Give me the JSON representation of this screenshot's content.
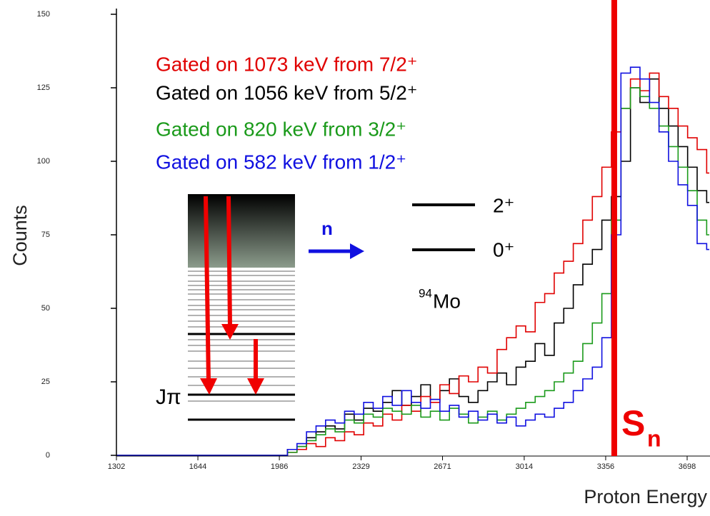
{
  "chart_data": {
    "type": "line",
    "drawstyle": "steps-post",
    "xlabel": "Proton Energy",
    "ylabel": "Counts",
    "xlim": [
      1302,
      3791
    ],
    "ylim": [
      0,
      150
    ],
    "xticks": [
      1302,
      1644,
      1986,
      2329,
      2671,
      3014,
      3356,
      3698
    ],
    "yticks": [
      0,
      25,
      50,
      75,
      100,
      125,
      150
    ],
    "grid": false,
    "x": [
      1302,
      1980,
      2020,
      2060,
      2100,
      2140,
      2180,
      2220,
      2260,
      2300,
      2340,
      2380,
      2420,
      2460,
      2500,
      2540,
      2580,
      2620,
      2660,
      2700,
      2740,
      2780,
      2820,
      2860,
      2900,
      2940,
      2980,
      3020,
      3060,
      3100,
      3140,
      3180,
      3220,
      3260,
      3300,
      3340,
      3380,
      3420,
      3460,
      3500,
      3540,
      3580,
      3620,
      3660,
      3700,
      3740,
      3780
    ],
    "series": [
      {
        "name": "Gated on 1073 keV from 7/2⁺",
        "color": "#e00000",
        "values": [
          0,
          0,
          1,
          2,
          4,
          3,
          6,
          5,
          8,
          7,
          11,
          10,
          14,
          12,
          17,
          15,
          20,
          18,
          24,
          21,
          27,
          25,
          30,
          28,
          36,
          40,
          44,
          42,
          52,
          55,
          62,
          66,
          72,
          80,
          88,
          98,
          110,
          118,
          128,
          124,
          130,
          122,
          118,
          112,
          108,
          104,
          96
        ]
      },
      {
        "name": "Gated on 1056 keV from 5/2⁺",
        "color": "#000000",
        "values": [
          0,
          0,
          2,
          3,
          6,
          8,
          10,
          9,
          14,
          12,
          16,
          15,
          18,
          22,
          17,
          20,
          24,
          19,
          22,
          26,
          20,
          18,
          22,
          25,
          28,
          24,
          30,
          32,
          38,
          34,
          45,
          50,
          58,
          65,
          70,
          80,
          88,
          100,
          125,
          120,
          128,
          118,
          112,
          105,
          98,
          90,
          86
        ]
      },
      {
        "name": "Gated on 820 keV from 3/2⁺",
        "color": "#1a9a1a",
        "values": [
          0,
          0,
          1,
          3,
          5,
          7,
          9,
          8,
          12,
          11,
          14,
          13,
          16,
          15,
          14,
          17,
          13,
          15,
          12,
          16,
          14,
          11,
          13,
          15,
          12,
          14,
          16,
          18,
          20,
          22,
          25,
          28,
          32,
          38,
          45,
          55,
          80,
          118,
          125,
          122,
          118,
          112,
          105,
          98,
          90,
          80,
          75
        ]
      },
      {
        "name": "Gated on 582 keV from 1/2⁺",
        "color": "#1010e0",
        "values": [
          0,
          0,
          2,
          4,
          8,
          10,
          12,
          11,
          15,
          14,
          18,
          16,
          20,
          17,
          22,
          18,
          16,
          19,
          15,
          17,
          13,
          15,
          12,
          14,
          11,
          13,
          10,
          12,
          14,
          13,
          16,
          18,
          22,
          26,
          30,
          40,
          75,
          130,
          132,
          128,
          120,
          110,
          100,
          92,
          85,
          72,
          70
        ]
      }
    ],
    "threshold": {
      "x": 3392,
      "color": "#ee0000",
      "symbol": "S",
      "subscript": "n"
    },
    "inset": {
      "spin_label": "Jπ",
      "neutron": "n",
      "levels": [
        "2⁺",
        "0⁺"
      ],
      "nucleus_mass": "94",
      "nucleus": "Mo"
    }
  }
}
